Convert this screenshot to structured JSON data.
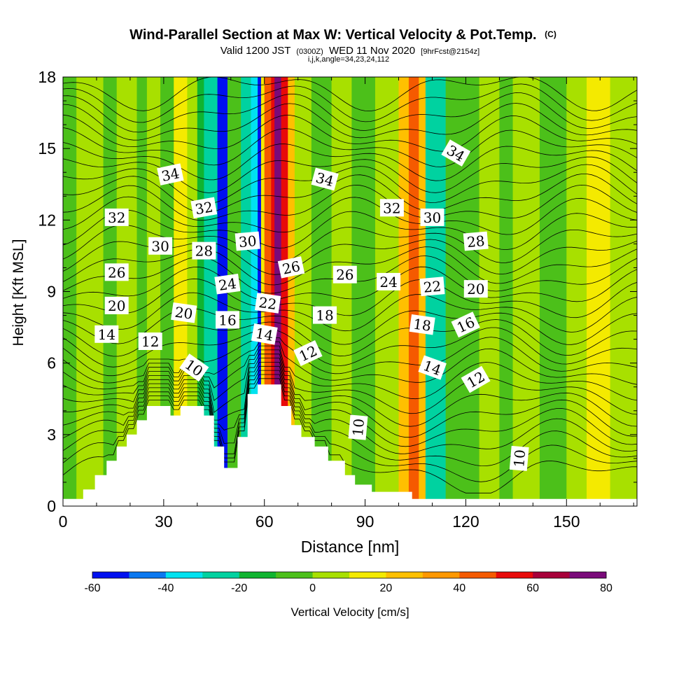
{
  "chart_data": {
    "type": "heatmap",
    "title": "Wind-Parallel Section at Max W: Vertical Velocity & Pot.Temp.",
    "title_mark": "(C)",
    "subtitle": {
      "prefix": "Valid 1200 JST",
      "small1": "(0300Z)",
      "middle": "WED 11 Nov 2020",
      "small2": "[9hrFcst@2154z]"
    },
    "subtitle2": "i,j,k,angle=34,23,24,112",
    "xlabel": "Distance [nm]",
    "ylabel": "Height [Kft MSL]",
    "xlim": [
      0,
      171
    ],
    "ylim": [
      0,
      18
    ],
    "x_ticks": [
      "0",
      "30",
      "60",
      "90",
      "120",
      "150"
    ],
    "y_ticks": [
      "0",
      "3",
      "6",
      "9",
      "12",
      "15",
      "18"
    ],
    "colorbar": {
      "label": "Vertical Velocity [cm/s]",
      "ticks": [
        "-60",
        "-40",
        "-20",
        "0",
        "20",
        "40",
        "60",
        "80"
      ],
      "colors": [
        "#0010f0",
        "#0a78f0",
        "#00e2f0",
        "#00d2a0",
        "#10b430",
        "#4cc01a",
        "#a8e000",
        "#f4ea00",
        "#ffc000",
        "#ff9800",
        "#f55a00",
        "#e80a0a",
        "#a8003a",
        "#7a0a7a"
      ]
    },
    "contour_labels": [
      {
        "text": "34",
        "x": 32,
        "y": 13.9,
        "rot": -12
      },
      {
        "text": "34",
        "x": 78,
        "y": 13.7,
        "rot": 15
      },
      {
        "text": "34",
        "x": 117,
        "y": 14.8,
        "rot": 30
      },
      {
        "text": "32",
        "x": 16,
        "y": 12.1,
        "rot": 0
      },
      {
        "text": "32",
        "x": 42,
        "y": 12.5,
        "rot": -10
      },
      {
        "text": "32",
        "x": 98,
        "y": 12.5,
        "rot": 0
      },
      {
        "text": "30",
        "x": 29,
        "y": 10.9,
        "rot": 0
      },
      {
        "text": "30",
        "x": 55,
        "y": 11.1,
        "rot": -5
      },
      {
        "text": "30",
        "x": 110,
        "y": 12.1,
        "rot": 0
      },
      {
        "text": "28",
        "x": 42,
        "y": 10.7,
        "rot": 0
      },
      {
        "text": "28",
        "x": 123,
        "y": 11.1,
        "rot": -5
      },
      {
        "text": "26",
        "x": 16,
        "y": 9.8,
        "rot": 0
      },
      {
        "text": "26",
        "x": 68,
        "y": 10.0,
        "rot": -12
      },
      {
        "text": "26",
        "x": 84,
        "y": 9.7,
        "rot": 0
      },
      {
        "text": "24",
        "x": 49,
        "y": 9.3,
        "rot": -8
      },
      {
        "text": "24",
        "x": 97,
        "y": 9.4,
        "rot": 0
      },
      {
        "text": "22",
        "x": 61,
        "y": 8.5,
        "rot": 8
      },
      {
        "text": "22",
        "x": 110,
        "y": 9.2,
        "rot": -5
      },
      {
        "text": "20",
        "x": 16,
        "y": 8.4,
        "rot": 0
      },
      {
        "text": "20",
        "x": 36,
        "y": 8.1,
        "rot": 8
      },
      {
        "text": "20",
        "x": 123,
        "y": 9.1,
        "rot": 0
      },
      {
        "text": "18",
        "x": 78,
        "y": 8.0,
        "rot": 0
      },
      {
        "text": "18",
        "x": 107,
        "y": 7.6,
        "rot": 8
      },
      {
        "text": "16",
        "x": 49,
        "y": 7.8,
        "rot": 0
      },
      {
        "text": "16",
        "x": 120,
        "y": 7.6,
        "rot": -25
      },
      {
        "text": "14",
        "x": 13,
        "y": 7.2,
        "rot": 0
      },
      {
        "text": "14",
        "x": 60,
        "y": 7.2,
        "rot": 10
      },
      {
        "text": "14",
        "x": 110,
        "y": 5.8,
        "rot": 20
      },
      {
        "text": "12",
        "x": 26,
        "y": 6.9,
        "rot": 0
      },
      {
        "text": "12",
        "x": 73,
        "y": 6.4,
        "rot": -25
      },
      {
        "text": "12",
        "x": 123,
        "y": 5.3,
        "rot": -30
      },
      {
        "text": "10",
        "x": 39,
        "y": 5.8,
        "rot": 35
      },
      {
        "text": "10",
        "x": 88,
        "y": 3.3,
        "rot": -85
      },
      {
        "text": "10",
        "x": 136,
        "y": 2.0,
        "rot": -85
      }
    ],
    "vertical_velocity_bands": [
      {
        "x0": 0,
        "x1": 4,
        "w": -5
      },
      {
        "x0": 4,
        "x1": 12,
        "w": 2
      },
      {
        "x0": 12,
        "x1": 16,
        "w": -5
      },
      {
        "x0": 16,
        "x1": 22,
        "w": 3
      },
      {
        "x0": 22,
        "x1": 25,
        "w": -8
      },
      {
        "x0": 25,
        "x1": 29,
        "w": 2
      },
      {
        "x0": 29,
        "x1": 33,
        "w": -5
      },
      {
        "x0": 33,
        "x1": 37,
        "w": 15
      },
      {
        "x0": 37,
        "x1": 40,
        "w": 5
      },
      {
        "x0": 40,
        "x1": 42,
        "w": -20
      },
      {
        "x0": 42,
        "x1": 46,
        "w": -30
      },
      {
        "x0": 46,
        "x1": 49,
        "w": -60
      },
      {
        "x0": 49,
        "x1": 53,
        "w": -5
      },
      {
        "x0": 53,
        "x1": 56,
        "w": -25
      },
      {
        "x0": 56,
        "x1": 58,
        "w": -40
      },
      {
        "x0": 58,
        "x1": 59,
        "w": -55
      },
      {
        "x0": 59,
        "x1": 60,
        "w": 10
      },
      {
        "x0": 60,
        "x1": 62,
        "w": 40
      },
      {
        "x0": 62,
        "x1": 63,
        "w": 58
      },
      {
        "x0": 63,
        "x1": 65,
        "w": 75
      },
      {
        "x0": 65,
        "x1": 67,
        "w": 50
      },
      {
        "x0": 67,
        "x1": 69,
        "w": 25
      },
      {
        "x0": 69,
        "x1": 74,
        "w": 3
      },
      {
        "x0": 74,
        "x1": 80,
        "w": -5
      },
      {
        "x0": 80,
        "x1": 86,
        "w": 5
      },
      {
        "x0": 86,
        "x1": 93,
        "w": -8
      },
      {
        "x0": 93,
        "x1": 100,
        "w": 3
      },
      {
        "x0": 100,
        "x1": 103,
        "w": 25
      },
      {
        "x0": 103,
        "x1": 106,
        "w": 45
      },
      {
        "x0": 106,
        "x1": 108,
        "w": 20
      },
      {
        "x0": 108,
        "x1": 114,
        "w": -25
      },
      {
        "x0": 114,
        "x1": 119,
        "w": -8
      },
      {
        "x0": 119,
        "x1": 124,
        "w": -2
      },
      {
        "x0": 124,
        "x1": 130,
        "w": 5
      },
      {
        "x0": 130,
        "x1": 134,
        "w": -10
      },
      {
        "x0": 134,
        "x1": 142,
        "w": 8
      },
      {
        "x0": 142,
        "x1": 150,
        "w": -5
      },
      {
        "x0": 150,
        "x1": 156,
        "w": 3
      },
      {
        "x0": 156,
        "x1": 163,
        "w": 15
      },
      {
        "x0": 163,
        "x1": 171,
        "w": 3
      }
    ],
    "terrain_kft": [
      [
        0,
        0.3
      ],
      [
        6,
        0.3
      ],
      [
        6,
        0.7
      ],
      [
        9.5,
        0.7
      ],
      [
        9.5,
        1.3
      ],
      [
        13,
        1.3
      ],
      [
        13,
        1.9
      ],
      [
        16,
        1.9
      ],
      [
        16,
        2.5
      ],
      [
        19,
        2.5
      ],
      [
        19,
        3.0
      ],
      [
        22,
        3.0
      ],
      [
        22,
        3.6
      ],
      [
        25,
        3.6
      ],
      [
        25,
        4.2
      ],
      [
        32,
        4.2
      ],
      [
        32,
        3.8
      ],
      [
        35,
        3.8
      ],
      [
        35,
        4.2
      ],
      [
        42,
        4.2
      ],
      [
        42,
        3.8
      ],
      [
        45,
        3.8
      ],
      [
        45,
        2.5
      ],
      [
        48,
        2.5
      ],
      [
        48,
        1.6
      ],
      [
        52,
        1.6
      ],
      [
        52,
        2.9
      ],
      [
        55,
        2.9
      ],
      [
        55,
        4.7
      ],
      [
        58,
        4.7
      ],
      [
        58,
        5.1
      ],
      [
        65,
        5.1
      ],
      [
        65,
        4.2
      ],
      [
        68,
        4.2
      ],
      [
        68,
        3.4
      ],
      [
        71,
        3.4
      ],
      [
        71,
        2.9
      ],
      [
        75,
        2.9
      ],
      [
        75,
        2.5
      ],
      [
        79,
        2.5
      ],
      [
        79,
        1.9
      ],
      [
        84,
        1.9
      ],
      [
        84,
        1.3
      ],
      [
        87,
        1.3
      ],
      [
        87,
        0.9
      ],
      [
        92,
        0.9
      ],
      [
        92,
        0.6
      ],
      [
        104,
        0.6
      ],
      [
        104,
        0.3
      ],
      [
        171,
        0.3
      ]
    ]
  }
}
